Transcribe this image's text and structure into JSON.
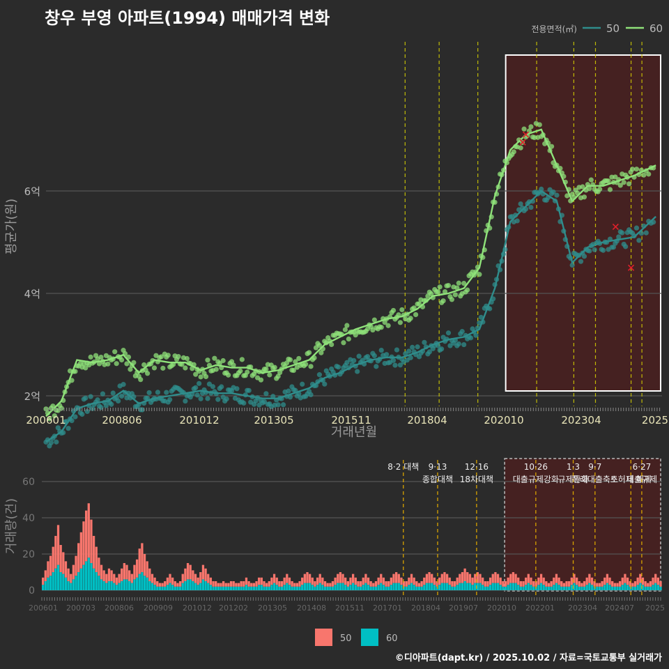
{
  "title": "창우 부영 아파트(1994) 매매가격 변화",
  "footer": "©디아파트(dapt.kr) / 2025.10.02 / 자료=국토교통부 실거래가",
  "colors": {
    "bg": "#2b2b2b",
    "grid": "#555555",
    "s50": "#2f8d8c",
    "s60": "#8fe27a",
    "vol50": "#f8766d",
    "vol60": "#00bfc4",
    "policy": "#d9d400",
    "highlight_fill": "#4a2020"
  },
  "chart_data": [
    {
      "type": "line",
      "title": "창우 부영 아파트(1994) 매매가격 변화",
      "xlabel": "거래년월",
      "ylabel": "평균가(원)",
      "x_ticks": [
        "200601",
        "200806",
        "201012",
        "201305",
        "201511",
        "201804",
        "202010",
        "202304",
        "2025"
      ],
      "y_ticks": [
        "2억",
        "4억",
        "6억"
      ],
      "ylim": [
        1.0,
        7.5
      ],
      "legend_title": "전용면적(㎡)",
      "legend_position": "top-right",
      "x": [
        2006.0,
        2006.5,
        2007.0,
        2007.5,
        2008.0,
        2008.5,
        2009.0,
        2009.5,
        2010.0,
        2010.5,
        2011.0,
        2011.5,
        2012.0,
        2012.5,
        2013.0,
        2013.5,
        2014.0,
        2014.5,
        2015.0,
        2015.5,
        2016.0,
        2016.5,
        2017.0,
        2017.5,
        2018.0,
        2018.5,
        2019.0,
        2019.5,
        2020.0,
        2020.5,
        2021.0,
        2021.5,
        2022.0,
        2022.5,
        2023.0,
        2023.5,
        2024.0,
        2024.5,
        2025.0,
        2025.7
      ],
      "series": [
        {
          "name": "50",
          "values": [
            1.1,
            1.3,
            1.75,
            1.85,
            1.9,
            2.1,
            1.85,
            1.95,
            2.0,
            2.05,
            2.1,
            2.05,
            2.05,
            2.0,
            1.95,
            1.95,
            2.05,
            2.15,
            2.35,
            2.45,
            2.6,
            2.7,
            2.75,
            2.75,
            2.85,
            3.0,
            3.1,
            3.15,
            3.3,
            4.1,
            5.4,
            5.7,
            6.0,
            5.8,
            4.6,
            4.9,
            5.0,
            5.05,
            5.1,
            5.5
          ]
        },
        {
          "name": "60",
          "values": [
            1.6,
            1.9,
            2.7,
            2.65,
            2.7,
            2.8,
            2.45,
            2.7,
            2.65,
            2.65,
            2.5,
            2.6,
            2.55,
            2.55,
            2.45,
            2.5,
            2.6,
            2.7,
            3.0,
            3.15,
            3.3,
            3.4,
            3.5,
            3.55,
            3.7,
            3.95,
            4.0,
            4.1,
            4.5,
            5.9,
            6.8,
            7.1,
            7.2,
            6.5,
            5.8,
            6.1,
            6.1,
            6.2,
            6.3,
            6.5
          ]
        }
      ],
      "cancelled_marks": [
        {
          "x": 2021.4,
          "y": 6.95
        },
        {
          "x": 2021.5,
          "y": 7.1
        },
        {
          "x": 2024.4,
          "y": 5.3
        },
        {
          "x": 2024.9,
          "y": 4.5
        }
      ],
      "policy_x": [
        2017.6,
        2018.7,
        2019.95,
        2021.85,
        2023.05,
        2023.75,
        2024.9,
        2025.25
      ],
      "highlight": {
        "x_start": 2020.85,
        "x_end": 2026.0
      }
    },
    {
      "type": "bar",
      "ylabel": "거래량(건)",
      "x_ticks": [
        "200601",
        "200703",
        "200806",
        "200909",
        "201012",
        "201202",
        "201305",
        "201408",
        "201511",
        "201701",
        "201804",
        "201907",
        "202010",
        "202201",
        "202304",
        "202407",
        "2025"
      ],
      "y_ticks": [
        "0",
        "20",
        "40",
        "60"
      ],
      "ylim": [
        0,
        75
      ],
      "legend": [
        "50",
        "60"
      ],
      "legend_position": "bottom",
      "start": "2006-01",
      "series": [
        {
          "name": "50",
          "values": [
            4,
            6,
            9,
            11,
            14,
            18,
            22,
            15,
            12,
            9,
            7,
            5,
            8,
            11,
            16,
            20,
            24,
            28,
            30,
            24,
            18,
            14,
            10,
            8,
            6,
            5,
            7,
            6,
            5,
            4,
            5,
            7,
            9,
            8,
            6,
            5,
            8,
            10,
            14,
            16,
            12,
            9,
            7,
            5,
            4,
            3,
            2,
            2,
            3,
            4,
            5,
            4,
            3,
            2,
            3,
            5,
            7,
            9,
            8,
            6,
            5,
            4,
            6,
            8,
            7,
            5,
            4,
            3,
            3,
            2,
            2,
            3,
            2,
            2,
            3,
            3,
            2,
            2,
            3,
            3,
            4,
            3,
            2,
            2,
            3,
            4,
            4,
            3,
            2,
            3,
            4,
            5,
            4,
            3,
            3,
            4,
            5,
            4,
            3,
            2,
            2,
            3,
            4,
            5,
            6,
            5,
            4,
            3,
            4,
            5,
            4,
            3,
            2,
            2,
            3,
            4,
            5,
            6,
            5,
            4,
            3,
            4,
            5,
            4,
            3,
            3,
            4,
            5,
            4,
            3,
            2,
            3,
            4,
            5,
            4,
            3,
            3,
            4,
            5,
            6,
            5,
            4,
            3,
            3,
            4,
            5,
            4,
            3,
            2,
            3,
            4,
            5,
            6,
            5,
            4,
            3,
            4,
            5,
            6,
            5,
            4,
            3,
            3,
            4,
            5,
            6,
            7,
            6,
            5,
            4,
            5,
            6,
            5,
            4,
            3,
            3,
            4,
            5,
            6,
            5,
            4,
            3,
            3,
            4,
            5,
            6,
            5,
            4,
            3,
            3,
            4,
            5,
            4,
            3,
            3,
            4,
            5,
            4,
            3,
            2,
            3,
            4,
            5,
            4,
            3,
            2,
            3,
            3,
            4,
            5,
            4,
            3,
            2,
            3,
            4,
            5,
            4,
            3,
            2,
            2,
            3,
            4,
            5,
            4,
            3,
            2,
            2,
            3,
            4,
            5,
            4,
            3,
            2,
            3,
            4,
            5,
            4,
            3,
            2,
            3,
            4,
            5,
            4,
            3
          ]
        },
        {
          "name": "60",
          "values": [
            3,
            5,
            7,
            8,
            10,
            12,
            14,
            10,
            9,
            7,
            5,
            4,
            6,
            8,
            10,
            12,
            14,
            16,
            18,
            15,
            12,
            10,
            8,
            6,
            5,
            4,
            5,
            5,
            4,
            3,
            4,
            5,
            6,
            6,
            5,
            4,
            6,
            7,
            9,
            10,
            8,
            7,
            5,
            4,
            3,
            2,
            2,
            2,
            2,
            3,
            4,
            3,
            2,
            2,
            2,
            4,
            5,
            6,
            6,
            5,
            4,
            3,
            4,
            6,
            5,
            4,
            3,
            2,
            2,
            2,
            2,
            2,
            2,
            2,
            2,
            2,
            2,
            2,
            2,
            2,
            3,
            2,
            2,
            2,
            2,
            3,
            3,
            2,
            2,
            2,
            3,
            4,
            3,
            2,
            2,
            3,
            4,
            3,
            2,
            2,
            2,
            2,
            3,
            4,
            4,
            4,
            3,
            2,
            3,
            4,
            3,
            2,
            2,
            2,
            2,
            3,
            4,
            4,
            4,
            3,
            2,
            3,
            4,
            3,
            2,
            2,
            3,
            4,
            3,
            2,
            2,
            2,
            3,
            4,
            3,
            2,
            2,
            3,
            4,
            4,
            4,
            3,
            2,
            2,
            3,
            4,
            3,
            2,
            2,
            2,
            3,
            4,
            4,
            4,
            3,
            2,
            3,
            4,
            4,
            4,
            3,
            2,
            2,
            3,
            4,
            4,
            5,
            4,
            4,
            3,
            4,
            4,
            4,
            3,
            2,
            2,
            3,
            4,
            4,
            4,
            3,
            2,
            2,
            3,
            4,
            4,
            4,
            3,
            2,
            2,
            3,
            4,
            3,
            2,
            2,
            3,
            4,
            3,
            2,
            2,
            2,
            3,
            4,
            3,
            2,
            2,
            2,
            2,
            3,
            4,
            3,
            2,
            2,
            2,
            3,
            4,
            3,
            2,
            2,
            2,
            2,
            3,
            4,
            3,
            2,
            2,
            2,
            2,
            3,
            4,
            3,
            2,
            2,
            2,
            3,
            4,
            3,
            2,
            2,
            2,
            3,
            4,
            3,
            2
          ]
        }
      ],
      "highlight": {
        "x_start": 2020.85,
        "x_end": 2026.0
      },
      "policy_annotations": [
        {
          "x": 2017.6,
          "label": "8·2 대책",
          "line2": ""
        },
        {
          "x": 2018.7,
          "label": "9·13",
          "line2": "종합대책"
        },
        {
          "x": 2019.95,
          "label": "12·16",
          "line2": "18차대책"
        },
        {
          "x": 2021.85,
          "label": "10·26",
          "line2": "대출규제강화"
        },
        {
          "x": 2023.05,
          "label": "1·3",
          "line2": "규제완화"
        },
        {
          "x": 2023.75,
          "label": "9·7",
          "line2": "특례대출축소"
        },
        {
          "x": 2024.9,
          "label": "",
          "line2": "토허제 해제"
        },
        {
          "x": 2025.25,
          "label": "6·27",
          "line2": "대출규제"
        }
      ]
    }
  ]
}
